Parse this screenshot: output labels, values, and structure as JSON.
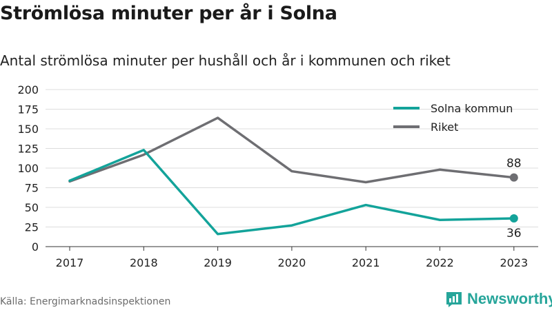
{
  "header": {
    "title": "Strömlösa minuter per år i Solna",
    "subtitle": "Antal strömlösa minuter per hushåll och år i kommunen och riket"
  },
  "footer": {
    "source": "Källa: Energimarknadsinspektionen",
    "brand": "Newsworthy",
    "brand_icon": "bar-chart-icon"
  },
  "colors": {
    "solna": "#13a39a",
    "riket": "#6e6e72",
    "grid": "#dcdcdc",
    "brand": "#26a59a"
  },
  "chart_data": {
    "type": "line",
    "x": [
      "2017",
      "2018",
      "2019",
      "2020",
      "2021",
      "2022",
      "2023"
    ],
    "series": [
      {
        "name": "Solna kommun",
        "values": [
          84,
          123,
          16,
          27,
          53,
          34,
          36
        ]
      },
      {
        "name": "Riket",
        "values": [
          83,
          117,
          164,
          96,
          82,
          98,
          88
        ]
      }
    ],
    "ylim": [
      0,
      200
    ],
    "yticks": [
      0,
      25,
      50,
      75,
      100,
      125,
      150,
      175,
      200
    ],
    "end_labels": [
      "36",
      "88"
    ],
    "grid": true,
    "legend": "top-right"
  }
}
